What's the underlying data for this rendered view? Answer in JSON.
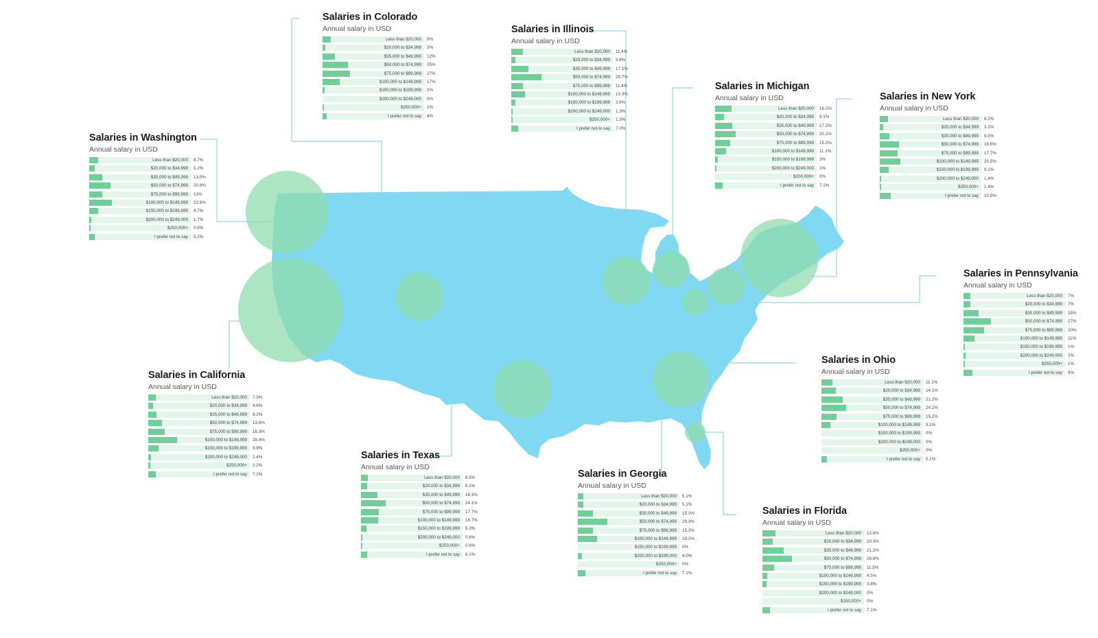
{
  "page": {
    "colors": {
      "map": "#80d8f2",
      "bubble": "#8fdcae",
      "bar": "#6fcf97",
      "track": "#e4f6ec",
      "line": "#7fcbe8"
    }
  },
  "chart_data": [
    {
      "type": "bar",
      "id": "colorado",
      "title": "Salaries in Colorado",
      "subtitle": "Annual salary in USD",
      "categories": [
        "Less than $20,000",
        "$20,000 to $34,999",
        "$35,000 to $49,999",
        "$50,000 to $74,999",
        "$75,000 to $99,999",
        "$100,000 to $149,999",
        "$150,000 to $199,999",
        "$200,000 to $249,000",
        "$250,000+",
        "I prefer not to say"
      ],
      "values": [
        8,
        3,
        12,
        25,
        27,
        17,
        2,
        0,
        1,
        4
      ],
      "labels": [
        "8%",
        "3%",
        "12%",
        "25%",
        "27%",
        "17%",
        "2%",
        "0%",
        "1%",
        "4%"
      ]
    },
    {
      "type": "bar",
      "id": "illinois",
      "title": "Salaries in Illinois",
      "subtitle": "Annual salary in USD",
      "categories": [
        "Less than $20,000",
        "$20,000 to $34,999",
        "$35,000 to $49,999",
        "$50,000 to $74,999",
        "$75,000 to $99,999",
        "$100,000 to $149,999",
        "$150,000 to $199,999",
        "$200,000 to $249,000",
        "$250,000+",
        "I prefer not to say"
      ],
      "values": [
        11.4,
        3.8,
        17.1,
        29.7,
        11.4,
        13.3,
        3.8,
        1.3,
        1.3,
        7.0
      ],
      "labels": [
        "11.4%",
        "3.8%",
        "17.1%",
        "29.7%",
        "11.4%",
        "13.3%",
        "3.8%",
        "1.3%",
        "1.3%",
        "7.0%"
      ]
    },
    {
      "type": "bar",
      "id": "michigan",
      "title": "Salaries in Michigan",
      "subtitle": "Annual salary in USD",
      "categories": [
        "Less than $20,000",
        "$20,000 to $34,999",
        "$35,000 to $49,999",
        "$50,000 to $74,999",
        "$75,000 to $99,999",
        "$100,000 to $149,999",
        "$150,000 to $199,999",
        "$200,000 to $249,000",
        "$200,000+",
        "I prefer not to say"
      ],
      "values": [
        16.2,
        9.1,
        17.2,
        20.2,
        15.2,
        11.1,
        3,
        1,
        0,
        7.1
      ],
      "labels": [
        "16.2%",
        "9.1%",
        "17.2%",
        "20.2%",
        "15.2%",
        "11.1%",
        "3%",
        "1%",
        "0%",
        "7.1%"
      ]
    },
    {
      "type": "bar",
      "id": "newyork",
      "title": "Salaries in New York",
      "subtitle": "Annual salary in USD",
      "categories": [
        "Less than $20,000",
        "$20,000 to $34,999",
        "$35,000 to $49,999",
        "$50,000 to $74,999",
        "$75,000 to $99,999",
        "$100,000 to $149,999",
        "$150,000 to $199,999",
        "$200,000 to $249,000",
        "$250,000+",
        "I prefer not to say"
      ],
      "values": [
        8.2,
        3.2,
        9.5,
        18.6,
        17.7,
        20.5,
        9.1,
        1.4,
        1.4,
        10.5
      ],
      "labels": [
        "8.2%",
        "3.2%",
        "9.5%",
        "18.6%",
        "17.7%",
        "20.5%",
        "9.1%",
        "1.4%",
        "1.4%",
        "10.5%"
      ]
    },
    {
      "type": "bar",
      "id": "washington",
      "title": "Salaries in Washington",
      "subtitle": "Annual salary in USD",
      "categories": [
        "Less than $20,000",
        "$20,000 to $34,999",
        "$35,000 to $49,999",
        "$50,000 to $74,999",
        "$75,000 to $99,999",
        "$100,000 to $149,999",
        "$150,000 to $199,999",
        "$200,000 to $249,000",
        "$250,000+",
        "I prefer not to say"
      ],
      "values": [
        8.7,
        5.2,
        13.0,
        20.9,
        13,
        22.6,
        8.7,
        1.7,
        0.9,
        5.2
      ],
      "labels": [
        "8.7%",
        "5.2%",
        "13.0%",
        "20.9%",
        "13%",
        "22.6%",
        "8.7%",
        "1.7%",
        "0.9%",
        "5.2%"
      ]
    },
    {
      "type": "bar",
      "id": "pennsylvania",
      "title": "Salaries in Pennsylvania",
      "subtitle": "Annual salary in USD",
      "categories": [
        "Less than $20,000",
        "$20,000 to $34,999",
        "$35,000 to $49,999",
        "$50,000 to $74,999",
        "$75,000 to $99,999",
        "$100,000 to $149,999",
        "$150,000 to $199,999",
        "$200,000 to $249,000",
        "$250,000+",
        "I prefer not to say"
      ],
      "values": [
        7,
        7,
        15,
        27,
        20,
        11,
        1,
        2,
        1,
        9
      ],
      "labels": [
        "7%",
        "7%",
        "15%",
        "27%",
        "20%",
        "11%",
        "1%",
        "2%",
        "1%",
        "9%"
      ]
    },
    {
      "type": "bar",
      "id": "california",
      "title": "Salaries in California",
      "subtitle": "Annual salary in USD",
      "categories": [
        "Less than $20,000",
        "$20,000 to $34,999",
        "$35,000 to $49,999",
        "$50,000 to $74,999",
        "$75,000 to $99,999",
        "$100,000 to $149,999",
        "$150,000 to $199,999",
        "$200,000 to $249,000",
        "$250,000+",
        "I prefer not to say"
      ],
      "values": [
        7.3,
        4.6,
        8.2,
        13.8,
        16.3,
        28.4,
        9.9,
        2.4,
        2.2,
        7.1
      ],
      "labels": [
        "7.3%",
        "4.6%",
        "8.2%",
        "13.8%",
        "16.3%",
        "28.4%",
        "9.9%",
        "2.4%",
        "2.2%",
        "7.1%"
      ]
    },
    {
      "type": "bar",
      "id": "ohio",
      "title": "Salaries in Ohio",
      "subtitle": "Annual salary in USD",
      "categories": [
        "Less than $20,000",
        "$20,000 to $34,999",
        "$35,000 to $49,999",
        "$50,000 to $74,999",
        "$75,000 to $99,999",
        "$100,000 to $149,999",
        "$150,000 to $199,999",
        "$200,000 to $249,000",
        "$250,000+",
        "I prefer not to say"
      ],
      "values": [
        11.1,
        14.1,
        21.2,
        24.2,
        15.2,
        9.1,
        0,
        0,
        0,
        5.1
      ],
      "labels": [
        "11.1%",
        "14.1%",
        "21.2%",
        "24.2%",
        "15.2%",
        "9.1%",
        "0%",
        "0%",
        "0%",
        "5.1%"
      ]
    },
    {
      "type": "bar",
      "id": "texas",
      "title": "Salaries in Texas",
      "subtitle": "Annual salary in USD",
      "categories": [
        "Less than $20,000",
        "$20,000 to $34,999",
        "$35,000 to $49,999",
        "$50,000 to $74,999",
        "$75,000 to $99,999",
        "$100,000 to $149,999",
        "$150,000 to $199,999",
        "$200,000 to $249,000",
        "$250,000+",
        "I prefer not to say"
      ],
      "values": [
        6.5,
        6.1,
        16.3,
        24.1,
        17.7,
        16.7,
        5.3,
        0.8,
        0.8,
        6.1
      ],
      "labels": [
        "6.5%",
        "6.1%",
        "16.3%",
        "24.1%",
        "17.7%",
        "16.7%",
        "5.3%",
        "0.8%",
        "0.8%",
        "6.1%"
      ]
    },
    {
      "type": "bar",
      "id": "georgia",
      "title": "Salaries in Georgia",
      "subtitle": "Annual salary in USD",
      "categories": [
        "Less than $20,000",
        "$20,000 to $34,999",
        "$35,000 to $49,999",
        "$50,000 to $74,999",
        "$75,000 to $99,999",
        "$100,000 to $149,999",
        "$150,000 to $199,999",
        "$200,000 to $249,000",
        "$250,000+",
        "I prefer not to say"
      ],
      "values": [
        5.1,
        5.1,
        15.2,
        29.3,
        15.2,
        19.2,
        0,
        4.0,
        0,
        7.1
      ],
      "labels": [
        "5.1%",
        "5.1%",
        "15.2%",
        "29.3%",
        "15.2%",
        "19.2%",
        "0%",
        "4.0%",
        "0%",
        "7.1%"
      ]
    },
    {
      "type": "bar",
      "id": "florida",
      "title": "Salaries in Florida",
      "subtitle": "Annual salary in USD",
      "categories": [
        "Less than $20,000",
        "$20,000 to $34,999",
        "$35,000 to $49,999",
        "$50,000 to $74,999",
        "$75,000 to $99,999",
        "$100,000 to $149,999",
        "$150,000 to $199,999",
        "$200,000 to $249,000",
        "$250,000+",
        "I prefer not to say"
      ],
      "values": [
        12.8,
        10.3,
        21.2,
        28.8,
        11.5,
        4.5,
        3.8,
        0,
        0,
        7.1
      ],
      "labels": [
        "12.8%",
        "10.3%",
        "21.2%",
        "28.8%",
        "11.5%",
        "4.5%",
        "3.8%",
        "0%",
        "0%",
        "7.1%"
      ]
    }
  ]
}
